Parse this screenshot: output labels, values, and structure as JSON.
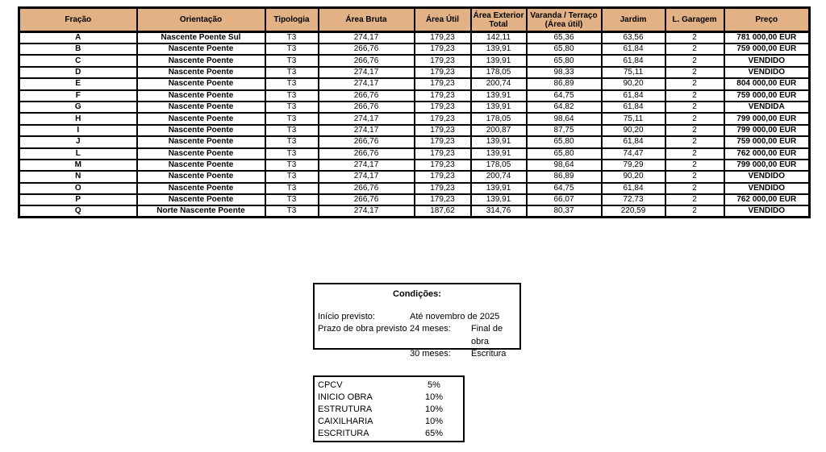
{
  "colors": {
    "header_bg": "#E2B286",
    "border": "#000000",
    "page_bg": "#FFFFFF"
  },
  "table": {
    "headers": [
      "Fração",
      "Orientação",
      "Tipologia",
      "Área Bruta",
      "Área Útil",
      "Área Exterior Total",
      "Varanda / Terraço (Área útil)",
      "Jardim",
      "L. Garagem",
      "Preço"
    ],
    "rows": [
      [
        "A",
        "Nascente Poente Sul",
        "T3",
        "274,17",
        "179,23",
        "142,11",
        "65,36",
        "63,56",
        "2",
        "781 000,00 EUR"
      ],
      [
        "B",
        "Nascente Poente",
        "T3",
        "266,76",
        "179,23",
        "139,91",
        "65,80",
        "61,84",
        "2",
        "759 000,00 EUR"
      ],
      [
        "C",
        "Nascente Poente",
        "T3",
        "266,76",
        "179,23",
        "139,91",
        "65,80",
        "61,84",
        "2",
        "VENDIDO"
      ],
      [
        "D",
        "Nascente Poente",
        "T3",
        "274,17",
        "179,23",
        "178,05",
        "98,33",
        "75,11",
        "2",
        "VENDIDO"
      ],
      [
        "E",
        "Nascente Poente",
        "T3",
        "274,17",
        "179,23",
        "200,74",
        "86,89",
        "90,20",
        "2",
        "804 000,00 EUR"
      ],
      [
        "F",
        "Nascente Poente",
        "T3",
        "266,76",
        "179,23",
        "139,91",
        "64,75",
        "61,84",
        "2",
        "759 000,00 EUR"
      ],
      [
        "G",
        "Nascente Poente",
        "T3",
        "266,76",
        "179,23",
        "139,91",
        "64,82",
        "61,84",
        "2",
        "VENDIDA"
      ],
      [
        "H",
        "Nascente Poente",
        "T3",
        "274,17",
        "179,23",
        "178,05",
        "98,64",
        "75,11",
        "2",
        "799 000,00 EUR"
      ],
      [
        "I",
        "Nascente Poente",
        "T3",
        "274,17",
        "179,23",
        "200,87",
        "87,75",
        "90,20",
        "2",
        "799 000,00 EUR"
      ],
      [
        "J",
        "Nascente Poente",
        "T3",
        "266,76",
        "179,23",
        "139,91",
        "65,80",
        "61,84",
        "2",
        "759 000,00 EUR"
      ],
      [
        "L",
        "Nascente Poente",
        "T3",
        "266,76",
        "179,23",
        "139,91",
        "65,80",
        "74,47",
        "2",
        "762 000,00 EUR"
      ],
      [
        "M",
        "Nascente Poente",
        "T3",
        "274,17",
        "179,23",
        "178,05",
        "98,64",
        "79,29",
        "2",
        "799 000,00 EUR"
      ],
      [
        "N",
        "Nascente Poente",
        "T3",
        "274,17",
        "179,23",
        "200,74",
        "86,89",
        "90,20",
        "2",
        "VENDIDO"
      ],
      [
        "O",
        "Nascente Poente",
        "T3",
        "266,76",
        "179,23",
        "139,91",
        "64,75",
        "61,84",
        "2",
        "VENDIDO"
      ],
      [
        "P",
        "Nascente Poente",
        "T3",
        "266,76",
        "179,23",
        "139,91",
        "66,07",
        "72,73",
        "2",
        "762 000,00 EUR"
      ],
      [
        "Q",
        "Norte Nascente Poente",
        "T3",
        "274,17",
        "187,62",
        "314,76",
        "80,37",
        "220,59",
        "2",
        "VENDIDO"
      ]
    ]
  },
  "conditions": {
    "title": "Condições:",
    "row1_label": "Início previsto:",
    "row1_value": "Até novembro de 2025",
    "row2_label": "Prazo de obra previsto",
    "row2_value": "24 meses:",
    "row2_note": "Final de obra",
    "row3_value": "30 meses:",
    "row3_note": "Escritura"
  },
  "payment": {
    "items": [
      {
        "label": "CPCV",
        "value": "5%"
      },
      {
        "label": "INICIO OBRA",
        "value": "10%"
      },
      {
        "label": "ESTRUTURA",
        "value": "10%"
      },
      {
        "label": "CAIXILHARIA",
        "value": "10%"
      },
      {
        "label": "ESCRITURA",
        "value": "65%"
      }
    ]
  }
}
